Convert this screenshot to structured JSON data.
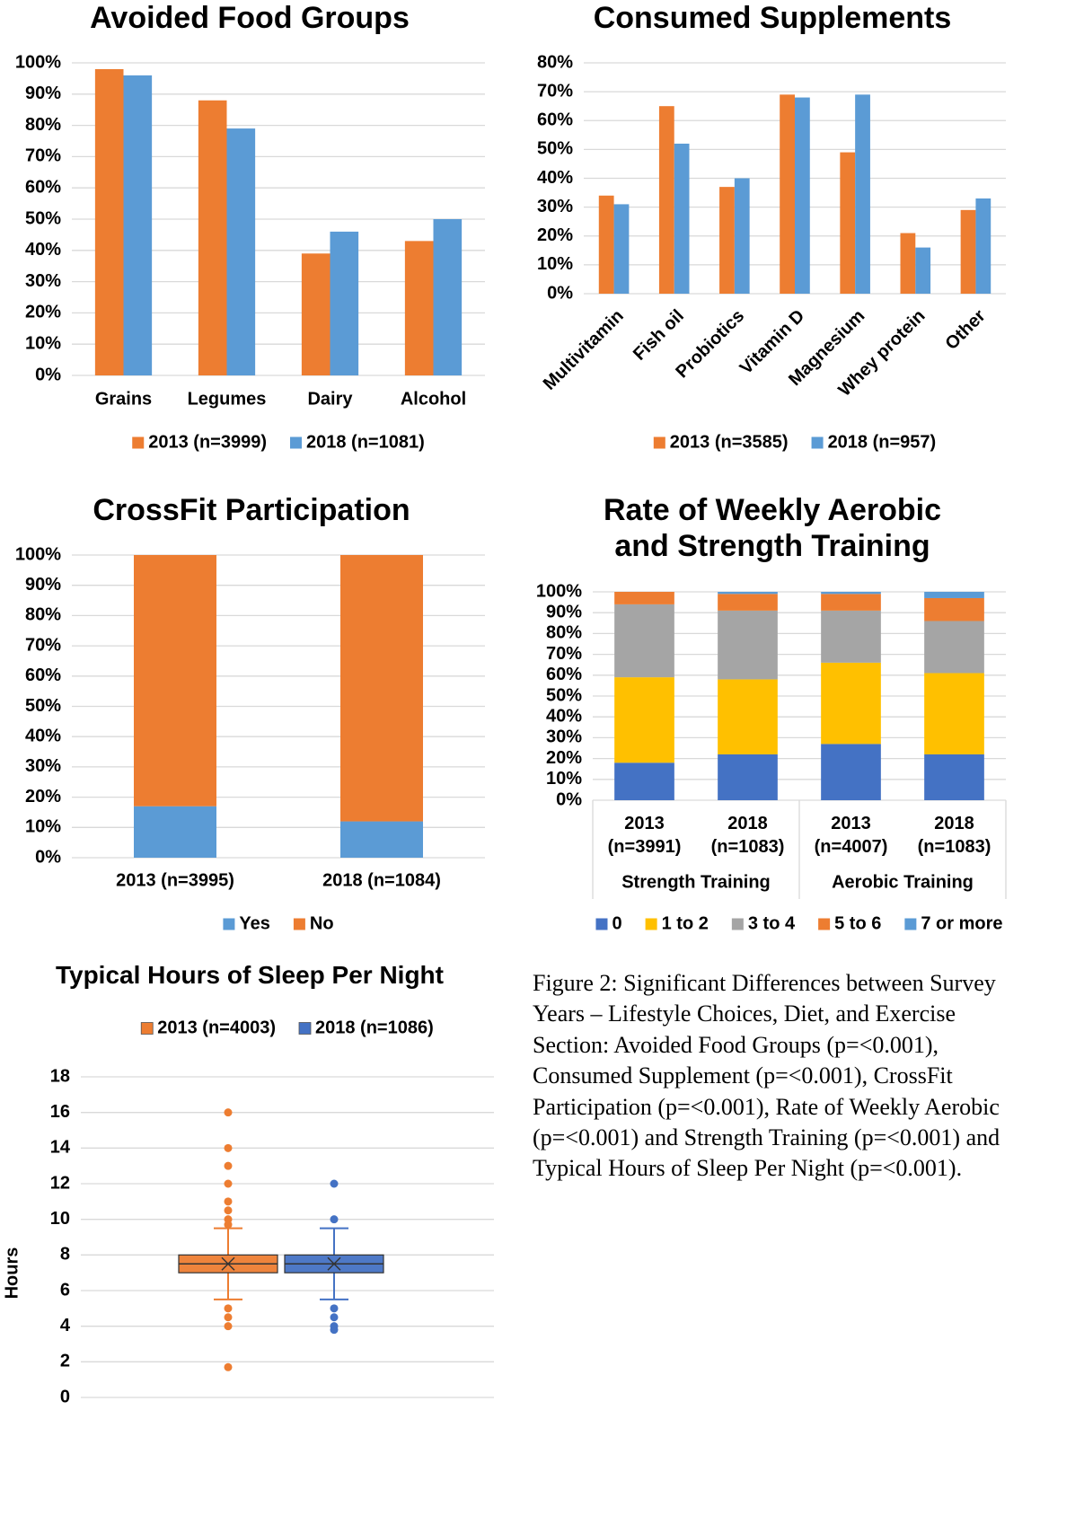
{
  "chart_data": [
    {
      "type": "bar",
      "title": "Avoided Food Groups",
      "categories": [
        "Grains",
        "Legumes",
        "Dairy",
        "Alcohol"
      ],
      "series": [
        {
          "name": "2013 (n=3999)",
          "color": "#ed7d31",
          "values": [
            98,
            88,
            39,
            43
          ]
        },
        {
          "name": "2018 (n=1081)",
          "color": "#5b9bd5",
          "values": [
            96,
            79,
            46,
            50
          ]
        }
      ],
      "ylim": [
        0,
        100
      ],
      "yticks": [
        {
          "value": 0,
          "label": "0%"
        },
        {
          "value": 10,
          "label": "10%"
        },
        {
          "value": 20,
          "label": "20%"
        },
        {
          "value": 30,
          "label": "30%"
        },
        {
          "value": 40,
          "label": "40%"
        },
        {
          "value": 50,
          "label": "50%"
        },
        {
          "value": 60,
          "label": "60%"
        },
        {
          "value": 70,
          "label": "70%"
        },
        {
          "value": 80,
          "label": "80%"
        },
        {
          "value": 90,
          "label": "90%"
        },
        {
          "value": 100,
          "label": "100%"
        }
      ],
      "grid": true,
      "legend": "bottom"
    },
    {
      "type": "bar",
      "title": "Consumed Supplements",
      "categories": [
        "Multivitamin",
        "Fish oil",
        "Probiotics",
        "Vitamin D",
        "Magnesium",
        "Whey protein",
        "Other"
      ],
      "series": [
        {
          "name": "2013 (n=3585)",
          "color": "#ed7d31",
          "values": [
            34,
            65,
            37,
            69,
            49,
            21,
            29
          ]
        },
        {
          "name": "2018 (n=957)",
          "color": "#5b9bd5",
          "values": [
            31,
            52,
            40,
            68,
            69,
            16,
            33
          ]
        }
      ],
      "ylim": [
        0,
        80
      ],
      "yticks": [
        {
          "value": 0,
          "label": "0%"
        },
        {
          "value": 10,
          "label": "10%"
        },
        {
          "value": 20,
          "label": "20%"
        },
        {
          "value": 30,
          "label": "30%"
        },
        {
          "value": 40,
          "label": "40%"
        },
        {
          "value": 50,
          "label": "50%"
        },
        {
          "value": 60,
          "label": "60%"
        },
        {
          "value": 70,
          "label": "70%"
        },
        {
          "value": 80,
          "label": "80%"
        }
      ],
      "x_label_rotation": -45,
      "grid": true,
      "legend": "bottom"
    },
    {
      "type": "stacked_bar",
      "title": "CrossFit Participation",
      "categories": [
        "2013 (n=3995)",
        "2018 (n=1084)"
      ],
      "series": [
        {
          "name": "Yes",
          "color": "#5b9bd5",
          "values": [
            17,
            12
          ]
        },
        {
          "name": "No",
          "color": "#ed7d31",
          "values": [
            83,
            88
          ]
        }
      ],
      "ylim": [
        0,
        100
      ],
      "yticks": [
        {
          "value": 0,
          "label": "0%"
        },
        {
          "value": 10,
          "label": "10%"
        },
        {
          "value": 20,
          "label": "20%"
        },
        {
          "value": 30,
          "label": "30%"
        },
        {
          "value": 40,
          "label": "40%"
        },
        {
          "value": 50,
          "label": "50%"
        },
        {
          "value": 60,
          "label": "60%"
        },
        {
          "value": 70,
          "label": "70%"
        },
        {
          "value": 80,
          "label": "80%"
        },
        {
          "value": 90,
          "label": "90%"
        },
        {
          "value": 100,
          "label": "100%"
        }
      ],
      "grid": true,
      "legend": "bottom"
    },
    {
      "type": "stacked_bar",
      "title": "Rate of Weekly Aerobic and Strength Training",
      "categories": [
        "2013 (n=3991)",
        "2018 (n=1083)",
        "2013 (n=4007)",
        "2018 (n=1083)"
      ],
      "groups": [
        {
          "label": "Strength Training",
          "span": 2
        },
        {
          "label": "Aerobic Training",
          "span": 2
        }
      ],
      "series": [
        {
          "name": "0",
          "color": "#4472c4",
          "values": [
            18,
            22,
            27,
            22
          ]
        },
        {
          "name": "1 to 2",
          "color": "#ffc000",
          "values": [
            41,
            36,
            39,
            39
          ]
        },
        {
          "name": "3 to 4",
          "color": "#a5a5a5",
          "values": [
            35,
            33,
            25,
            25
          ]
        },
        {
          "name": "5 to 6",
          "color": "#ed7d31",
          "values": [
            6,
            8,
            8,
            11
          ]
        },
        {
          "name": "7 or more",
          "color": "#5b9bd5",
          "values": [
            0,
            1,
            1,
            3
          ]
        }
      ],
      "ylim": [
        0,
        100
      ],
      "yticks": [
        {
          "value": 0,
          "label": "0%"
        },
        {
          "value": 10,
          "label": "10%"
        },
        {
          "value": 20,
          "label": "20%"
        },
        {
          "value": 30,
          "label": "30%"
        },
        {
          "value": 40,
          "label": "40%"
        },
        {
          "value": 50,
          "label": "50%"
        },
        {
          "value": 60,
          "label": "60%"
        },
        {
          "value": 70,
          "label": "70%"
        },
        {
          "value": 80,
          "label": "80%"
        },
        {
          "value": 90,
          "label": "90%"
        },
        {
          "value": 100,
          "label": "100%"
        }
      ],
      "grid": true,
      "legend": "bottom"
    },
    {
      "type": "box",
      "title": "Typical Hours of Sleep Per Night",
      "ylabel": "Hours",
      "series": [
        {
          "name": "2013 (n=4003)",
          "color": "#ed7d31",
          "whisker_low": 5.5,
          "q1": 7,
          "median": 7.5,
          "mean": 7.5,
          "q3": 8,
          "whisker_high": 9.5,
          "outliers": [
            16,
            14,
            13,
            12,
            11,
            10.5,
            10,
            9.7,
            5,
            4.5,
            4,
            1.7
          ]
        },
        {
          "name": "2018 (n=1086)",
          "color": "#4472c4",
          "whisker_low": 5.5,
          "q1": 7,
          "median": 7.5,
          "mean": 7.5,
          "q3": 8,
          "whisker_high": 9.5,
          "outliers": [
            12,
            10,
            5,
            4.5,
            4,
            3.8
          ]
        }
      ],
      "ylim": [
        0,
        18
      ],
      "yticks": [
        0,
        2,
        4,
        6,
        8,
        10,
        12,
        14,
        16,
        18
      ],
      "grid": true,
      "legend": "top"
    }
  ],
  "caption": "Figure 2: Significant Differences between Survey Years – Lifestyle Choices, Diet, and Exercise Section: Avoided Food Groups (p=<0.001), Consumed Supplement (p=<0.001), CrossFit Participation (p=<0.001), Rate of Weekly Aerobic (p=<0.001) and Strength Training (p=<0.001) and Typical Hours of Sleep Per Night (p=<0.001)."
}
